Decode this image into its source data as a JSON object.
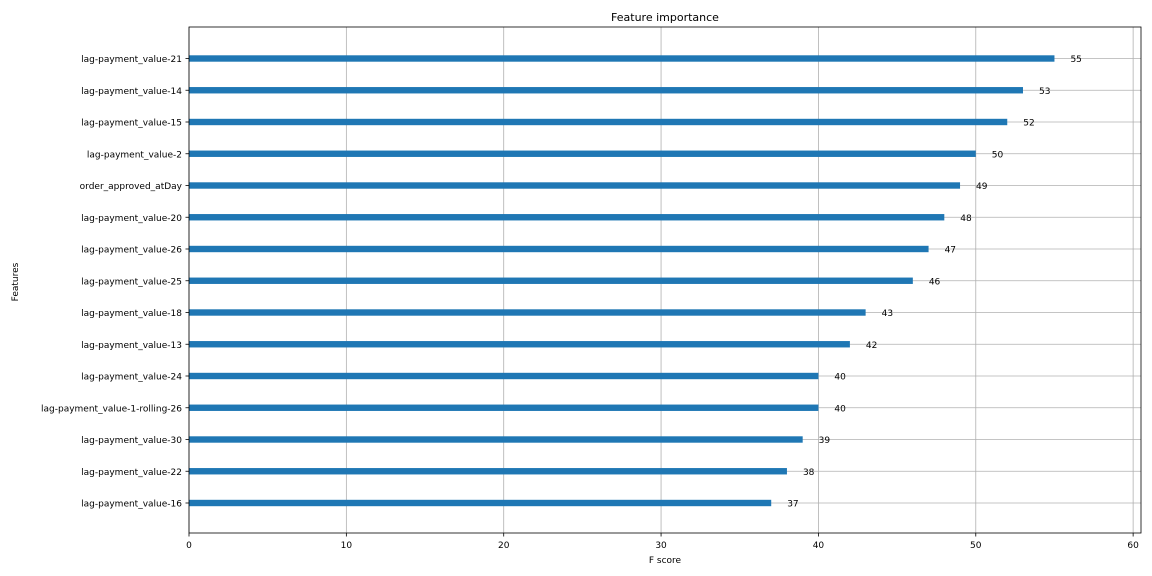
{
  "chart_data": {
    "type": "bar",
    "orientation": "horizontal",
    "title": "Feature importance",
    "xlabel": "F score",
    "ylabel": "Features",
    "xlim": [
      0,
      60.5
    ],
    "xticks": [
      0,
      10,
      20,
      30,
      40,
      50,
      60
    ],
    "grid": true,
    "categories": [
      "lag-payment_value-21",
      "lag-payment_value-14",
      "lag-payment_value-15",
      "lag-payment_value-2",
      "order_approved_atDay",
      "lag-payment_value-20",
      "lag-payment_value-26",
      "lag-payment_value-25",
      "lag-payment_value-18",
      "lag-payment_value-13",
      "lag-payment_value-24",
      "lag-payment_value-1-rolling-26",
      "lag-payment_value-30",
      "lag-payment_value-22",
      "lag-payment_value-16"
    ],
    "values": [
      55,
      53,
      52,
      50,
      49,
      48,
      47,
      46,
      43,
      42,
      40,
      40,
      39,
      38,
      37
    ],
    "colors": {
      "bar": "#1f77b4",
      "grid": "#b0b0b0",
      "axis": "#000000"
    }
  }
}
